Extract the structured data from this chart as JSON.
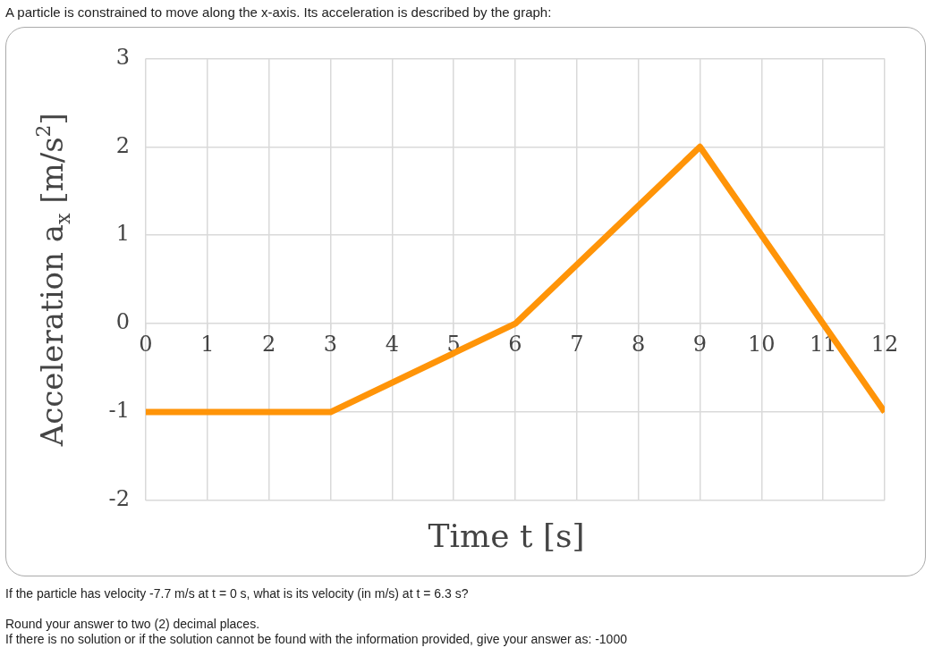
{
  "chart_data": {
    "type": "line",
    "title": "A particle is constrained to move along the x-axis. Its acceleration is described by the graph:",
    "xlabel": "Time t [s]",
    "ylabel": "Acceleration a$_{x}$ [m/s$^{2}$]",
    "x": [
      0,
      3,
      6,
      9,
      12
    ],
    "series": [
      {
        "color": "#ff9408",
        "values": [
          -1,
          -1,
          0,
          2,
          -1
        ]
      }
    ],
    "xlim": [
      0,
      12
    ],
    "xticks": [
      0,
      1,
      2,
      3,
      4,
      5,
      6,
      7,
      8,
      9,
      10,
      11,
      12
    ],
    "ylim": [
      -2,
      3
    ],
    "yticks": [
      -2,
      -1,
      0,
      1,
      2,
      3
    ],
    "grid": true,
    "legend": false,
    "marker": "none",
    "line_style": "solid",
    "annotations": [
      "If the particle has velocity -7.7 m/s at t = 0 s, what is its velocity (in m/s) at t = 6.3 s?",
      "Round your answer to two (2) decimal places.",
      "If there is no solution or if the solution cannot be found with the information provided, give your answer as: -1000"
    ]
  }
}
